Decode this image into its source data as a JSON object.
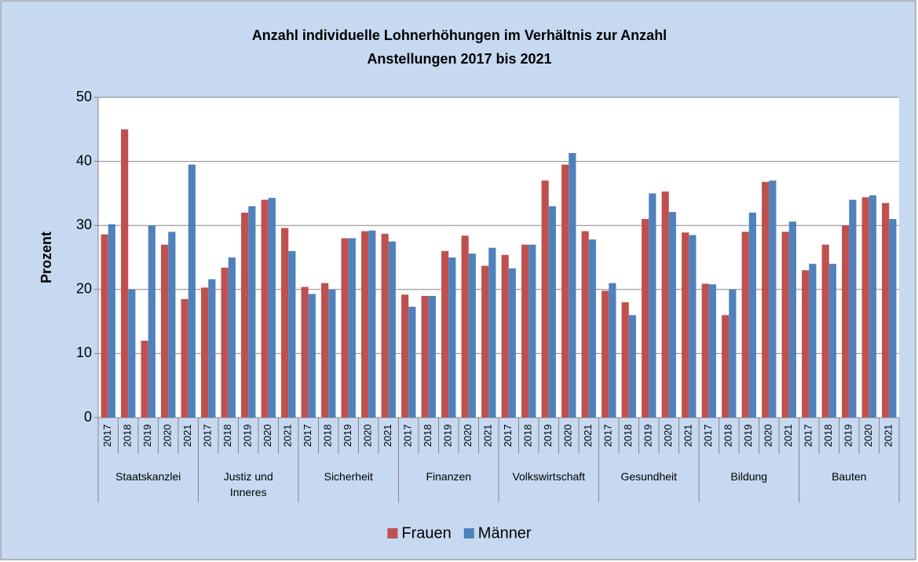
{
  "chart_data": {
    "type": "bar",
    "title": "Anzahl individuelle Lohnerhöhungen im Verhältnis zur Anzahl Anstellungen 2017 bis 2021",
    "ylabel": "Prozent",
    "category_groups": [
      "Staatskanzlei",
      "Justiz und Inneres",
      "Sicherheit",
      "Finanzen",
      "Volkswirtschaft",
      "Gesundheit",
      "Bildung",
      "Bauten"
    ],
    "categories": [
      "2017",
      "2018",
      "2019",
      "2020",
      "2021",
      "2017",
      "2018",
      "2019",
      "2020",
      "2021",
      "2017",
      "2018",
      "2019",
      "2020",
      "2021",
      "2017",
      "2018",
      "2019",
      "2020",
      "2021",
      "2017",
      "2018",
      "2019",
      "2020",
      "2021",
      "2017",
      "2018",
      "2019",
      "2020",
      "2021",
      "2017",
      "2018",
      "2019",
      "2020",
      "2021",
      "2017",
      "2018",
      "2019",
      "2020",
      "2021"
    ],
    "series": [
      {
        "name": "Frauen",
        "color": "#c0504d",
        "values": [
          28.6,
          45,
          12,
          27,
          18.5,
          20.3,
          23.4,
          32,
          34,
          29.6,
          20.4,
          21,
          28,
          29.1,
          28.7,
          19.2,
          19,
          26,
          28.4,
          23.7,
          25.4,
          27,
          37,
          39.5,
          29.1,
          19.8,
          18,
          31,
          35.3,
          28.9,
          20.9,
          16,
          29,
          36.8,
          29,
          23,
          27,
          30,
          34.4,
          33.5
        ]
      },
      {
        "name": "Männer",
        "color": "#4f81bd",
        "values": [
          30.2,
          20,
          30,
          29,
          39.5,
          21.6,
          25,
          33,
          34.3,
          26,
          19.3,
          20,
          28,
          29.2,
          27.5,
          17.3,
          19,
          25,
          25.6,
          26.5,
          23.3,
          27,
          33,
          41.3,
          27.8,
          21,
          16,
          35,
          32.1,
          28.5,
          20.8,
          20,
          32,
          37,
          30.6,
          24,
          24,
          34,
          34.7,
          31
        ]
      }
    ],
    "ylim": [
      0,
      50
    ],
    "yticks": [
      0,
      10,
      20,
      30,
      40,
      50
    ],
    "grid": true,
    "legend": "bottom"
  }
}
